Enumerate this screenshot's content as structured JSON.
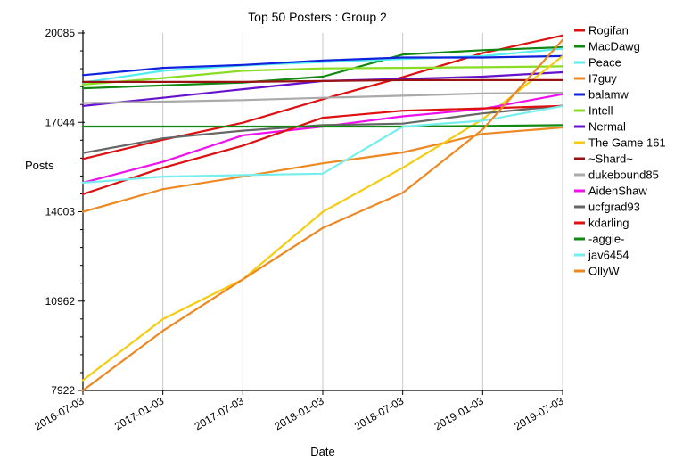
{
  "chart_data": {
    "type": "line",
    "title": "Top 50 Posters : Group 2",
    "xlabel": "Date",
    "ylabel": "Posts",
    "x": [
      "2016-07-03",
      "2017-01-03",
      "2017-07-03",
      "2018-01-03",
      "2018-07-03",
      "2019-01-03",
      "2019-07-03"
    ],
    "yticks": [
      7922,
      10962,
      14003,
      17044,
      20085
    ],
    "ylim": [
      7922,
      20085
    ],
    "grid": "vertical",
    "legend_position": "right",
    "series": [
      {
        "name": "Rogifan",
        "color": "#dd1111",
        "values": [
          15800,
          16450,
          17030,
          17830,
          18580,
          19400,
          20000
        ]
      },
      {
        "name": "MacDawg",
        "color": "#118811",
        "values": [
          18200,
          18300,
          18400,
          18600,
          19350,
          19500,
          19600
        ]
      },
      {
        "name": "Peace",
        "color": "#55eeee",
        "values": [
          18400,
          18800,
          18980,
          19100,
          19200,
          19300,
          19550
        ]
      },
      {
        "name": "I7guy",
        "color": "#ee8822",
        "values": [
          14000,
          14770,
          15200,
          15650,
          16020,
          16650,
          16870
        ]
      },
      {
        "name": "balamw",
        "color": "#1122dd",
        "values": [
          18650,
          18900,
          19000,
          19150,
          19250,
          19250,
          19300
        ]
      },
      {
        "name": "Intell",
        "color": "#88dd22",
        "values": [
          18330,
          18550,
          18800,
          18880,
          18900,
          18920,
          18950
        ]
      },
      {
        "name": "Nermal",
        "color": "#6611cc",
        "values": [
          17600,
          17880,
          18170,
          18450,
          18520,
          18600,
          18750
        ]
      },
      {
        "name": "The Game 161",
        "color": "#f5cc11",
        "values": [
          8270,
          10350,
          11700,
          14000,
          15500,
          17150,
          19300
        ]
      },
      {
        "name": "~Shard~",
        "color": "#991111",
        "values": [
          18420,
          18420,
          18420,
          18450,
          18480,
          18480,
          18480
        ]
      },
      {
        "name": "dukebound85",
        "color": "#aaaaaa",
        "values": [
          17700,
          17750,
          17800,
          17880,
          17950,
          18030,
          18050
        ]
      },
      {
        "name": "AidenShaw",
        "color": "#ee11ee",
        "values": [
          14990,
          15700,
          16600,
          16900,
          17250,
          17500,
          18000
        ]
      },
      {
        "name": "ucfgrad93",
        "color": "#666666",
        "values": [
          16000,
          16500,
          16760,
          16950,
          17000,
          17350,
          17610
        ]
      },
      {
        "name": "kdarling",
        "color": "#dd1111",
        "values": [
          14600,
          15500,
          16250,
          17200,
          17440,
          17520,
          17600
        ]
      },
      {
        "name": "-aggie-",
        "color": "#118811",
        "values": [
          16900,
          16900,
          16900,
          16900,
          16900,
          16920,
          16950
        ]
      },
      {
        "name": "jav6454",
        "color": "#77eeee",
        "values": [
          14990,
          15200,
          15250,
          15300,
          16900,
          17100,
          17600
        ]
      },
      {
        "name": "OllyW",
        "color": "#ee8822",
        "values": [
          7922,
          9950,
          11700,
          13450,
          14650,
          16800,
          19850
        ]
      }
    ]
  }
}
